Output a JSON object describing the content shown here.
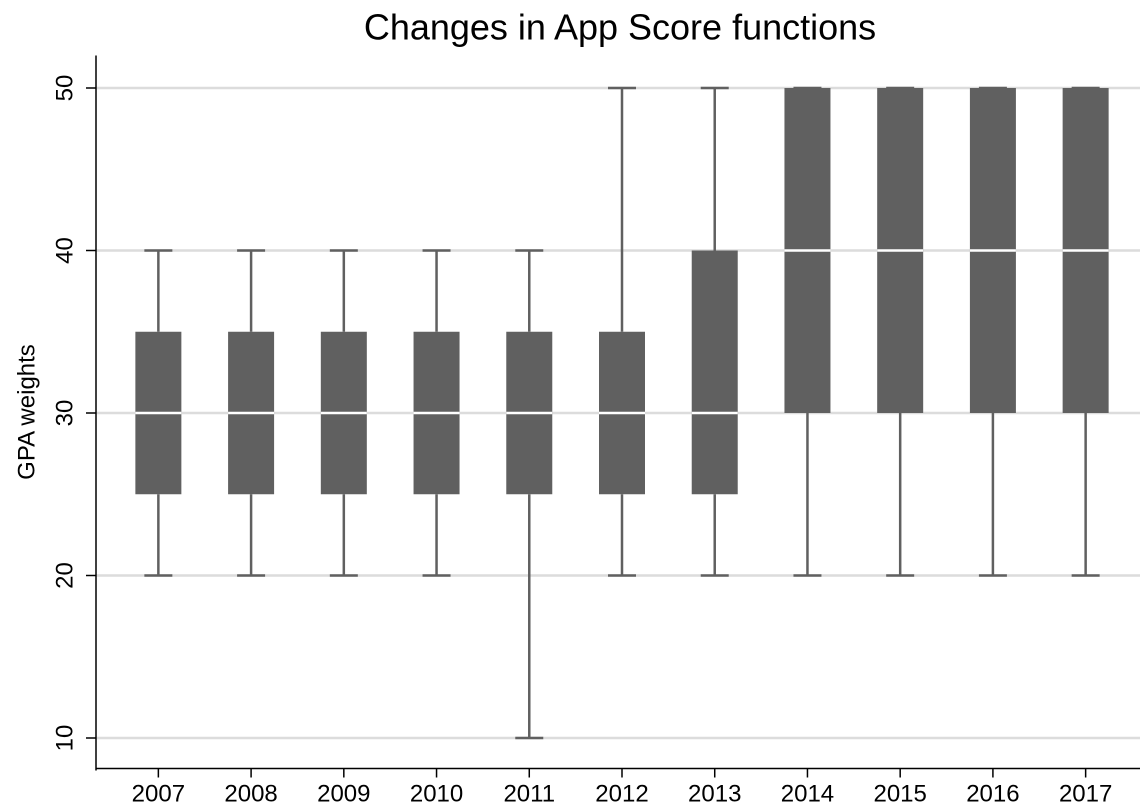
{
  "chart_data": {
    "type": "box",
    "title": "Changes in App Score functions",
    "y_label": "GPA weights",
    "categories": [
      "2007",
      "2008",
      "2009",
      "2010",
      "2011",
      "2012",
      "2013",
      "2014",
      "2015",
      "2016",
      "2017"
    ],
    "min": [
      20,
      20,
      20,
      20,
      10,
      20,
      20,
      20,
      20,
      20,
      20
    ],
    "q1": [
      25,
      25,
      25,
      25,
      25,
      25,
      25,
      30,
      30,
      30,
      30
    ],
    "median": [
      30,
      30,
      30,
      30,
      30,
      30,
      30,
      40,
      40,
      40,
      40
    ],
    "q3": [
      35,
      35,
      35,
      35,
      35,
      35,
      40,
      50,
      50,
      50,
      50
    ],
    "max": [
      40,
      40,
      40,
      40,
      40,
      50,
      50,
      50,
      50,
      50,
      50
    ],
    "color": "#606060",
    "median_color": "#ffffff",
    "ylim": [
      8,
      52
    ],
    "yticks": [
      10,
      20,
      30,
      40,
      50
    ],
    "grid": true
  }
}
